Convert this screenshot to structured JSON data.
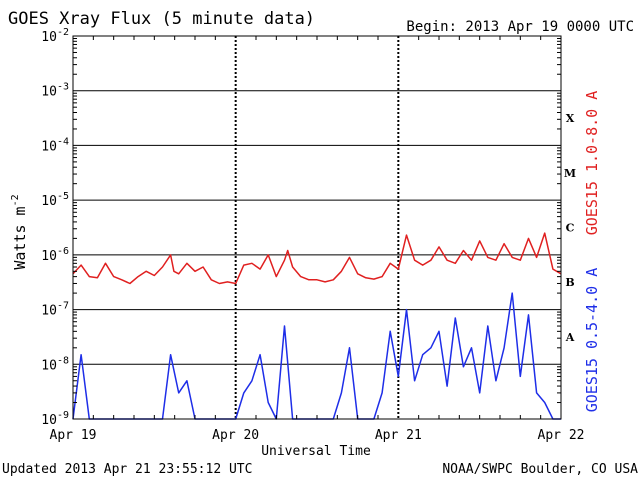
{
  "chart_data": {
    "type": "line",
    "title": "GOES Xray Flux (5 minute data)",
    "begin_label": "Begin:  2013 Apr 19 0000 UTC",
    "xlabel": "Universal Time",
    "ylabel_main": "Watts m",
    "ylabel_exp": "-2",
    "ylim": [
      1e-09,
      0.01
    ],
    "log_scale_y": true,
    "grid": true,
    "x_ticks": [
      "Apr 19",
      "Apr 20",
      "Apr 21",
      "Apr 22"
    ],
    "x_range_days": [
      0,
      3
    ],
    "y_ticks": [
      {
        "base": "10",
        "exp": "-2",
        "value": 0.01
      },
      {
        "base": "10",
        "exp": "-3",
        "value": 0.001
      },
      {
        "base": "10",
        "exp": "-4",
        "value": 0.0001
      },
      {
        "base": "10",
        "exp": "-5",
        "value": 1e-05
      },
      {
        "base": "10",
        "exp": "-6",
        "value": 1e-06
      },
      {
        "base": "10",
        "exp": "-7",
        "value": 1e-07
      },
      {
        "base": "10",
        "exp": "-8",
        "value": 1e-08
      },
      {
        "base": "10",
        "exp": "-9",
        "value": 1e-09
      }
    ],
    "flare_classes": [
      {
        "label": "X",
        "value": 0.000316
      },
      {
        "label": "M",
        "value": 3.16e-05
      },
      {
        "label": "C",
        "value": 3.16e-06
      },
      {
        "label": "B",
        "value": 3.16e-07
      },
      {
        "label": "A",
        "value": 3.16e-08
      }
    ],
    "series": [
      {
        "name": "GOES15 1.0-8.0 A",
        "color": "#e02020",
        "x": [
          0,
          0.05,
          0.1,
          0.15,
          0.2,
          0.25,
          0.3,
          0.35,
          0.4,
          0.45,
          0.5,
          0.55,
          0.6,
          0.62,
          0.65,
          0.7,
          0.75,
          0.8,
          0.85,
          0.9,
          0.95,
          1.0,
          1.05,
          1.1,
          1.15,
          1.2,
          1.25,
          1.3,
          1.32,
          1.35,
          1.4,
          1.45,
          1.5,
          1.55,
          1.6,
          1.65,
          1.7,
          1.75,
          1.8,
          1.85,
          1.9,
          1.95,
          2.0,
          2.05,
          2.1,
          2.15,
          2.2,
          2.25,
          2.3,
          2.35,
          2.4,
          2.45,
          2.5,
          2.55,
          2.6,
          2.65,
          2.7,
          2.75,
          2.8,
          2.85,
          2.9,
          2.95,
          3.0
        ],
        "y": [
          4.5e-07,
          6.5e-07,
          4e-07,
          3.8e-07,
          7e-07,
          4e-07,
          3.5e-07,
          3e-07,
          4e-07,
          5e-07,
          4.2e-07,
          6e-07,
          1e-06,
          5e-07,
          4.5e-07,
          7e-07,
          5e-07,
          6e-07,
          3.5e-07,
          3e-07,
          3.2e-07,
          3e-07,
          6.5e-07,
          7e-07,
          5.5e-07,
          1e-06,
          4e-07,
          8e-07,
          1.2e-06,
          6e-07,
          4e-07,
          3.5e-07,
          3.5e-07,
          3.2e-07,
          3.5e-07,
          5e-07,
          9e-07,
          4.5e-07,
          3.8e-07,
          3.6e-07,
          4e-07,
          7e-07,
          5.5e-07,
          2.3e-06,
          8e-07,
          6.5e-07,
          8e-07,
          1.4e-06,
          8e-07,
          7e-07,
          1.2e-06,
          8e-07,
          1.8e-06,
          9e-07,
          8e-07,
          1.6e-06,
          9e-07,
          8e-07,
          2e-06,
          9e-07,
          2.5e-06,
          5.5e-07,
          4.5e-07
        ]
      },
      {
        "name": "GOES15 0.5-4.0 A",
        "color": "#1e2ee8",
        "x": [
          0,
          0.05,
          0.1,
          0.15,
          0.2,
          0.25,
          0.3,
          0.35,
          0.4,
          0.45,
          0.5,
          0.55,
          0.6,
          0.65,
          0.7,
          0.75,
          0.8,
          0.85,
          0.9,
          0.95,
          1.0,
          1.05,
          1.1,
          1.15,
          1.2,
          1.25,
          1.3,
          1.35,
          1.4,
          1.45,
          1.5,
          1.55,
          1.6,
          1.65,
          1.7,
          1.75,
          1.8,
          1.85,
          1.9,
          1.95,
          2.0,
          2.05,
          2.1,
          2.15,
          2.2,
          2.25,
          2.3,
          2.35,
          2.4,
          2.45,
          2.5,
          2.55,
          2.6,
          2.65,
          2.7,
          2.75,
          2.8,
          2.85,
          2.9,
          2.95,
          3.0
        ],
        "y": [
          1e-09,
          1.5e-08,
          1e-09,
          1e-09,
          1e-09,
          1e-09,
          1e-09,
          1e-09,
          1e-09,
          1e-09,
          1e-09,
          1e-09,
          1.5e-08,
          3e-09,
          5e-09,
          1e-09,
          1e-09,
          1e-09,
          1e-09,
          1e-09,
          1e-09,
          3e-09,
          5e-09,
          1.5e-08,
          2e-09,
          1e-09,
          5e-08,
          1e-09,
          1e-09,
          1e-09,
          1e-09,
          1e-09,
          1e-09,
          3e-09,
          2e-08,
          1e-09,
          1e-09,
          1e-09,
          3e-09,
          4e-08,
          6e-09,
          1e-07,
          5e-09,
          1.5e-08,
          2e-08,
          4e-08,
          4e-09,
          7e-08,
          9e-09,
          2e-08,
          3e-09,
          5e-08,
          5e-09,
          2e-08,
          2e-07,
          6e-09,
          8e-08,
          3e-09,
          2e-09,
          1e-09,
          1e-09
        ]
      }
    ]
  },
  "footer": {
    "updated": "Updated 2013 Apr 21 23:55:12 UTC",
    "source": "NOAA/SWPC Boulder, CO USA"
  }
}
